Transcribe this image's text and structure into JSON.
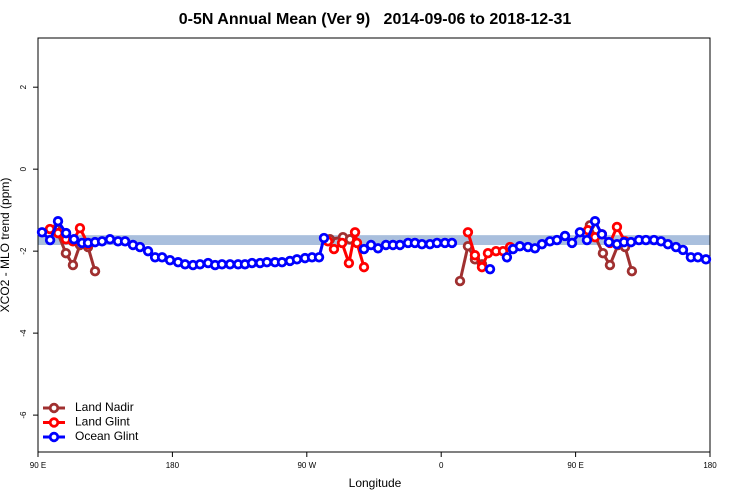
{
  "chart_data": {
    "type": "line",
    "title": "0-5N Annual Mean (Ver 9)   2014-09-06 to 2018-12-31",
    "x_label": "Longitude",
    "y_label": "XCO2 - MLO trend (ppm)",
    "xlim": [
      90,
      540
    ],
    "xticks": [
      {
        "value": 90,
        "label": "90 E"
      },
      {
        "value": 180,
        "label": "180"
      },
      {
        "value": 270,
        "label": "90 W"
      },
      {
        "value": 360,
        "label": "0"
      },
      {
        "value": 450,
        "label": "90 E"
      },
      {
        "value": 540,
        "label": "180"
      }
    ],
    "ylim": [
      -6.9,
      3.2
    ],
    "yticks": [
      2,
      0,
      -2,
      -4,
      -6
    ],
    "reference_band": {
      "range": [
        -1.85,
        -1.61
      ],
      "color": "#a9bfdd"
    },
    "legend": "bottom-left",
    "series": [
      {
        "name": "Land Nadir",
        "color": "#a03030",
        "x": [
          102.1,
          108.7,
          113.4,
          118.1,
          123.5,
          128.2,
          null,
          285.5,
          294.2,
          298.9,
          null,
          372.6,
          377.9,
          382.6,
          387.3,
          null,
          459.6,
          468.3,
          473.0,
          478.4,
          483.1,
          487.7
        ],
        "values": [
          -1.46,
          -2.05,
          -2.34,
          -1.85,
          -1.9,
          -2.49,
          null,
          -1.71,
          -1.66,
          -1.71,
          null,
          -2.73,
          -1.88,
          -2.2,
          -2.32,
          null,
          -1.37,
          -2.05,
          -2.34,
          -1.85,
          -1.9,
          -2.49
        ]
      },
      {
        "name": "Land Glint",
        "color": "#ff0000",
        "x": [
          98.0,
          103.4,
          108.7,
          113.4,
          118.1,
          123.5,
          null,
          284.2,
          288.2,
          293.6,
          298.2,
          302.3,
          303.6,
          308.3,
          null,
          377.9,
          382.6,
          387.3,
          391.3,
          396.7,
          401.4,
          406.1,
          null,
          458.3,
          463.0,
          467.6,
          473.0,
          477.7,
          483.1
        ],
        "values": [
          -1.46,
          -1.56,
          -1.71,
          -1.76,
          -1.44,
          -1.83,
          null,
          -1.76,
          -1.95,
          -1.8,
          -2.29,
          -1.54,
          -1.8,
          -2.39,
          null,
          -1.54,
          -2.1,
          -2.39,
          -2.05,
          -2.0,
          -2.0,
          -1.9,
          null,
          -1.49,
          -1.66,
          -1.59,
          -1.8,
          -1.41,
          -1.76
        ]
      },
      {
        "name": "Ocean Glint",
        "color": "#0000ff",
        "x": [
          92.7,
          98.1,
          103.4,
          108.8,
          114.1,
          119.5,
          123.5,
          128.2,
          132.9,
          138.2,
          143.6,
          148.3,
          153.6,
          158.3,
          163.7,
          168.4,
          173.1,
          178.4,
          183.8,
          188.5,
          193.8,
          198.5,
          203.9,
          208.6,
          213.2,
          218.6,
          224.0,
          228.6,
          233.3,
          238.7,
          243.3,
          248.7,
          253.4,
          258.7,
          263.4,
          268.8,
          273.5,
          278.2,
          281.5,
          null,
          308.3,
          313.0,
          317.7,
          323.0,
          327.7,
          332.4,
          337.8,
          342.4,
          347.1,
          352.5,
          357.2,
          362.5,
          367.2,
          null,
          392.7,
          null,
          404.0,
          408.1,
          412.7,
          418.1,
          422.8,
          427.5,
          432.8,
          437.5,
          442.9,
          447.6,
          452.9,
          457.6,
          463.0,
          467.6,
          472.3,
          477.7,
          482.4,
          487.1,
          492.4,
          497.1,
          502.5,
          507.2,
          511.8,
          517.2,
          521.9,
          527.2,
          531.9,
          537.3
        ],
        "values": [
          -1.54,
          -1.73,
          -1.27,
          -1.56,
          -1.71,
          -1.8,
          -1.8,
          -1.78,
          -1.76,
          -1.71,
          -1.76,
          -1.76,
          -1.85,
          -1.9,
          -2.0,
          -2.15,
          -2.15,
          -2.22,
          -2.27,
          -2.32,
          -2.34,
          -2.32,
          -2.29,
          -2.34,
          -2.32,
          -2.32,
          -2.32,
          -2.32,
          -2.29,
          -2.29,
          -2.27,
          -2.27,
          -2.27,
          -2.24,
          -2.2,
          -2.17,
          -2.15,
          -2.15,
          -1.68,
          null,
          -1.95,
          -1.85,
          -1.93,
          -1.85,
          -1.85,
          -1.85,
          -1.8,
          -1.8,
          -1.83,
          -1.83,
          -1.8,
          -1.8,
          -1.8,
          null,
          -2.44,
          null,
          -2.15,
          -1.95,
          -1.88,
          -1.9,
          -1.93,
          -1.83,
          -1.76,
          -1.73,
          -1.63,
          -1.8,
          -1.54,
          -1.73,
          -1.27,
          -1.59,
          -1.78,
          -1.83,
          -1.78,
          -1.78,
          -1.73,
          -1.73,
          -1.73,
          -1.76,
          -1.83,
          -1.9,
          -1.97,
          -2.15,
          -2.15,
          -2.2
        ]
      }
    ]
  }
}
